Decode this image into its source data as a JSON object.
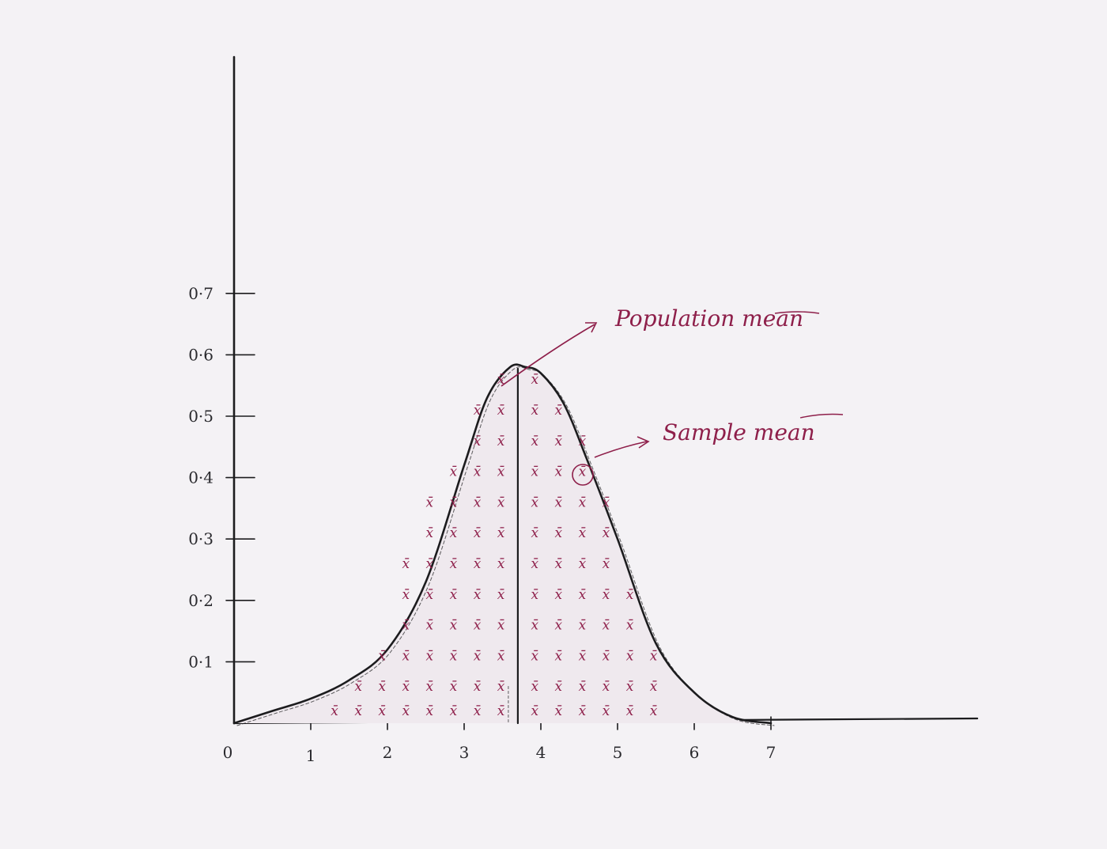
{
  "colors": {
    "ink": "#1c1c1e",
    "sample_ink": "#8e1f4a",
    "paper": "#f4f2f5"
  },
  "chart_data": {
    "type": "area",
    "title": "",
    "xlabel": "",
    "ylabel": "",
    "xlim": [
      0,
      7
    ],
    "ylim": [
      0,
      0.7
    ],
    "x_ticks": [
      "0",
      "1",
      "2",
      "3",
      "4",
      "5",
      "6",
      "7"
    ],
    "y_ticks": [
      "0.1",
      "0.2",
      "0.3",
      "0.4",
      "0.5",
      "0.6",
      "0.7"
    ],
    "grid": false,
    "legend": "none",
    "curve": {
      "x": [
        0,
        0.5,
        1,
        1.5,
        2,
        2.5,
        3,
        3.3,
        3.6,
        3.8,
        4,
        4.3,
        4.6,
        5,
        5.5,
        6,
        6.5,
        7
      ],
      "y": [
        0,
        0.02,
        0.04,
        0.07,
        0.12,
        0.23,
        0.42,
        0.53,
        0.58,
        0.58,
        0.57,
        0.52,
        0.43,
        0.3,
        0.13,
        0.05,
        0.01,
        0
      ]
    },
    "population_mean_x": 3.7,
    "sample_symbol": "x̄",
    "sample_counts_per_row": {
      "y_rows": [
        0.01,
        0.05,
        0.1,
        0.15,
        0.2,
        0.25,
        0.3,
        0.35,
        0.4,
        0.45,
        0.5,
        0.55
      ],
      "left": [
        8,
        7,
        6,
        5,
        5,
        5,
        4,
        4,
        3,
        2,
        2,
        1
      ],
      "right": [
        6,
        6,
        6,
        5,
        5,
        4,
        4,
        4,
        3,
        3,
        2,
        1
      ]
    },
    "annotations": [
      {
        "text": "Population mean",
        "target": "population-mean-line"
      },
      {
        "text": "Sample mean",
        "target": "circled-sample"
      }
    ]
  }
}
